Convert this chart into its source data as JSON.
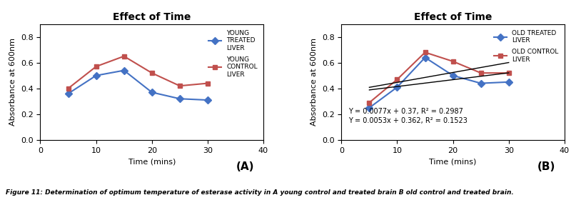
{
  "title": "Effect of Time",
  "xlabel": "Time (mins)",
  "ylabel": "Absorbance at 600nm",
  "xlim": [
    0,
    40
  ],
  "ylim": [
    0,
    0.9
  ],
  "yticks": [
    0,
    0.2,
    0.4,
    0.6,
    0.8
  ],
  "xticks": [
    0,
    10,
    20,
    30,
    40
  ],
  "panel_A": {
    "young_treated_x": [
      5,
      10,
      15,
      20,
      25,
      30
    ],
    "young_treated_y": [
      0.36,
      0.5,
      0.54,
      0.37,
      0.32,
      0.31
    ],
    "young_control_x": [
      5,
      10,
      15,
      20,
      25,
      30
    ],
    "young_control_y": [
      0.4,
      0.57,
      0.65,
      0.52,
      0.42,
      0.44
    ],
    "treated_color": "#4472C4",
    "control_color": "#C0504D",
    "treated_label": "YOUNG\nTREATED\nLIVER",
    "control_label": "YOUNG\nCONTROL\nLIVER",
    "label_A": "(A)"
  },
  "panel_B": {
    "old_treated_x": [
      5,
      10,
      15,
      20,
      25,
      30
    ],
    "old_treated_y": [
      0.25,
      0.41,
      0.64,
      0.5,
      0.44,
      0.45
    ],
    "old_control_x": [
      5,
      10,
      15,
      20,
      25,
      30
    ],
    "old_control_y": [
      0.29,
      0.47,
      0.68,
      0.61,
      0.52,
      0.52
    ],
    "treated_color": "#4472C4",
    "control_color": "#C0504D",
    "treated_label": "OLD TREATED\nLIVER",
    "control_label": "OLD CONTROL\nLIVER",
    "label_B": "(B)",
    "eq1": "Y = 0.0077x + 0.37, R² = 0.2987",
    "eq2": "Y = 0.0053x + 0.362, R² = 0.1523",
    "trendline1_x": [
      5,
      30
    ],
    "trendline1_y": [
      0.4085,
      0.601
    ],
    "trendline2_x": [
      5,
      30
    ],
    "trendline2_y": [
      0.3885,
      0.521
    ]
  },
  "figure_caption": "Figure 11: Determination of optimum temperature of esterase activity in A young control and treated brain B old control and treated brain.",
  "background_color": "#FFFFFF"
}
